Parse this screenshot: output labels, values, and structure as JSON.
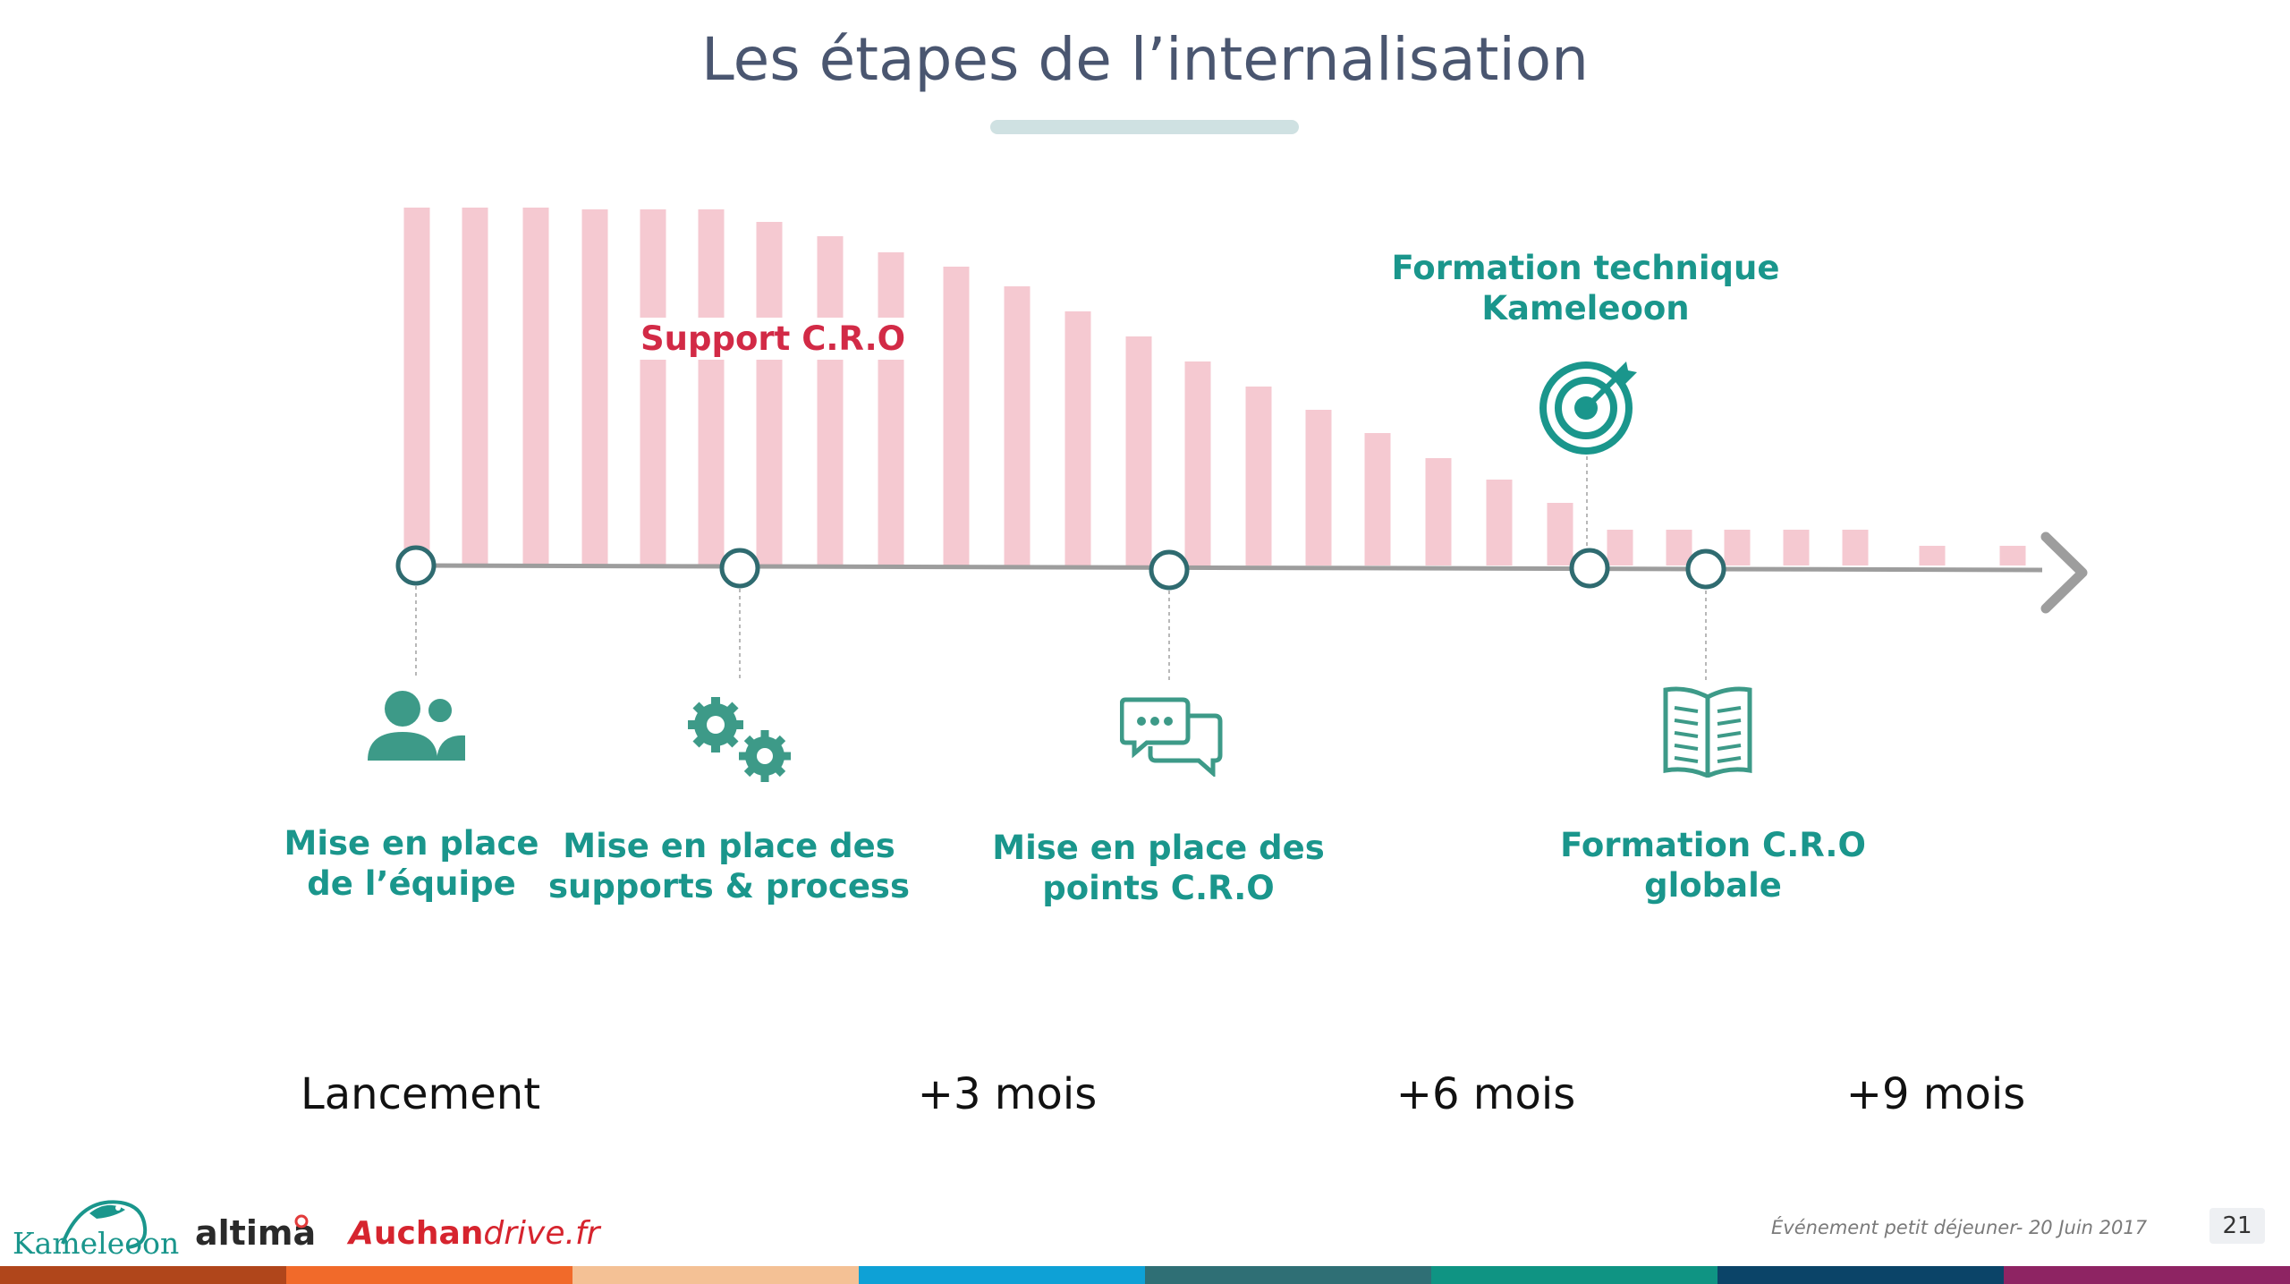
{
  "title": "Les étapes de l’internalisation",
  "chart_data": {
    "type": "bar",
    "description_series": "Support C.R.O",
    "values": [
      100,
      100,
      100,
      99.5,
      99.5,
      99.5,
      96,
      92,
      87.5,
      83.5,
      78,
      71,
      64,
      57,
      50,
      43.5,
      37,
      30,
      24,
      17.5,
      10,
      10,
      10,
      10,
      10,
      5.5,
      5.5
    ],
    "ylim": [
      0,
      100
    ],
    "color": "#f5c9d1"
  },
  "support_label": "Support C.R.O",
  "milestones": [
    {
      "label": "Mise en place\nde l’équipe",
      "icon": "team-icon"
    },
    {
      "label": "Mise en place des\nsupports & process",
      "icon": "gears-icon"
    },
    {
      "label": "Mise en place des\npoints C.R.O",
      "icon": "chat-bubbles-icon"
    },
    {
      "label": "Formation technique\nKameleoon",
      "icon": "target-icon"
    },
    {
      "label": "Formation C.R.O\nglobale",
      "icon": "open-book-icon"
    }
  ],
  "time_labels": [
    "Lancement",
    "+3 mois",
    "+6 mois",
    "+9 mois"
  ],
  "logos": {
    "kameleoon": "Kameleoon",
    "altima": "altima",
    "auchan_a": "A",
    "auchan_rest": "uchan",
    "auchan_drive": "drive.fr"
  },
  "footer_event": "Événement petit déjeuner- 20 Juin 2017",
  "page_number": "21",
  "colors": {
    "teal": "#1a968c",
    "dark_teal": "#2f6b70",
    "bar": "#f5c9d1",
    "accent_red": "#d22a46",
    "band": [
      "#b0461b",
      "#f16a2a",
      "#f4c195",
      "#0ea1d6",
      "#2f6f75",
      "#0f9483",
      "#0b4468",
      "#8e2463"
    ]
  }
}
